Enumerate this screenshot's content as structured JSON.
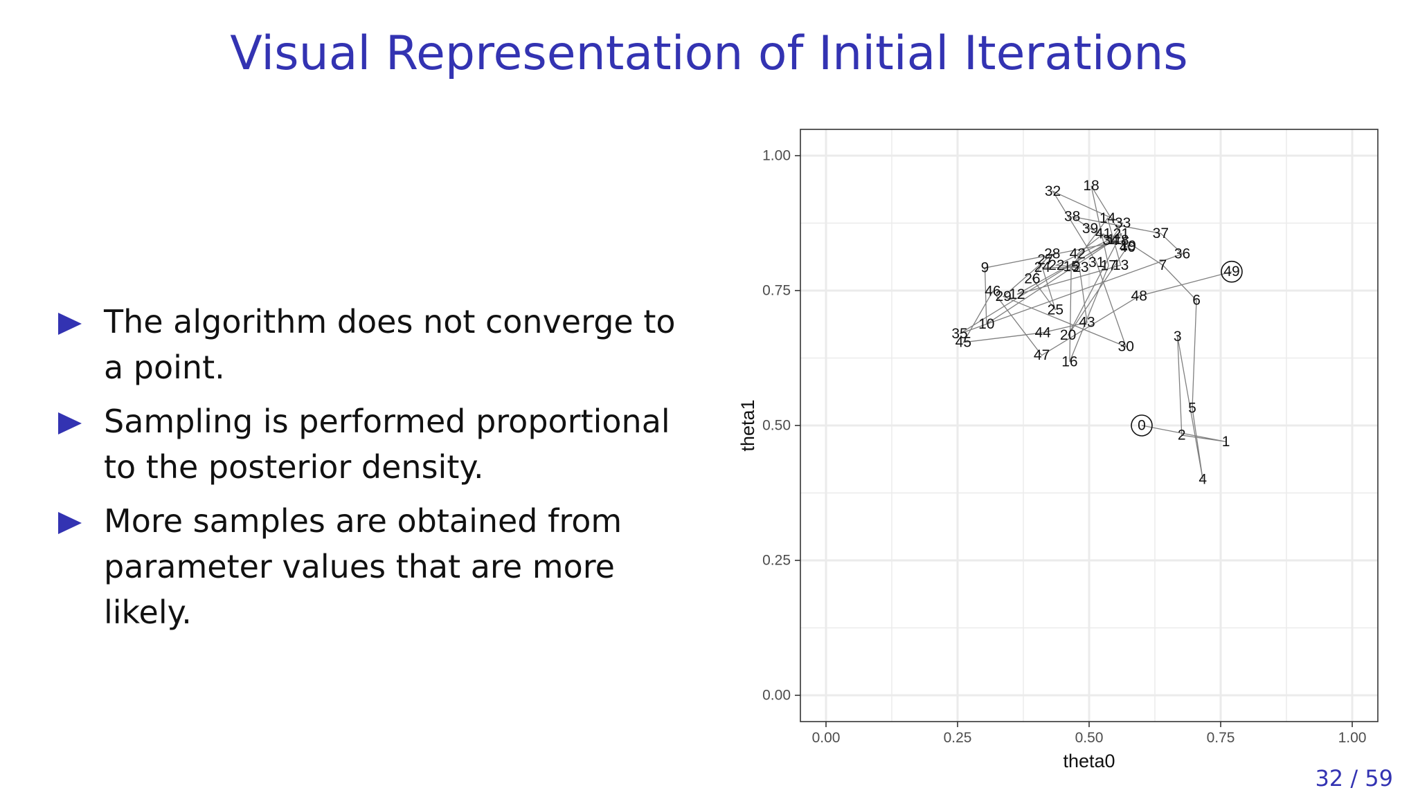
{
  "slide": {
    "title": "Visual Representation of Initial Iterations",
    "bullets": [
      "The algorithm does not converge to a point.",
      "Sampling is performed proportional to the posterior density.",
      "More samples are obtained from parameter values that are more likely."
    ],
    "page_number": "32 / 59"
  },
  "colors": {
    "accent": "#3333b2",
    "grid": "#ebebeb",
    "path": "#7f7f7f"
  },
  "chart_data": {
    "type": "line",
    "xlabel": "theta0",
    "ylabel": "theta1",
    "xlim": [
      0,
      1
    ],
    "ylim": [
      0,
      1
    ],
    "xticks": [
      "0.00",
      "0.25",
      "0.50",
      "0.75",
      "1.00"
    ],
    "yticks": [
      "0.00",
      "0.25",
      "0.50",
      "0.75",
      "1.00"
    ],
    "grid": true,
    "circled_points": [
      0,
      49
    ],
    "points": [
      {
        "label": "0",
        "x": 0.6,
        "y": 0.5
      },
      {
        "label": "1",
        "x": 0.76,
        "y": 0.47
      },
      {
        "label": "2",
        "x": 0.676,
        "y": 0.482
      },
      {
        "label": "3",
        "x": 0.668,
        "y": 0.665
      },
      {
        "label": "4",
        "x": 0.716,
        "y": 0.4
      },
      {
        "label": "5",
        "x": 0.696,
        "y": 0.532
      },
      {
        "label": "6",
        "x": 0.704,
        "y": 0.732
      },
      {
        "label": "7",
        "x": 0.64,
        "y": 0.797
      },
      {
        "label": "8",
        "x": 0.568,
        "y": 0.843
      },
      {
        "label": "9",
        "x": 0.302,
        "y": 0.792
      },
      {
        "label": "10",
        "x": 0.305,
        "y": 0.688
      },
      {
        "label": "11",
        "x": 0.548,
        "y": 0.844
      },
      {
        "label": "12",
        "x": 0.363,
        "y": 0.743
      },
      {
        "label": "13",
        "x": 0.56,
        "y": 0.797
      },
      {
        "label": "14",
        "x": 0.535,
        "y": 0.884
      },
      {
        "label": "15",
        "x": 0.466,
        "y": 0.794
      },
      {
        "label": "16",
        "x": 0.463,
        "y": 0.618
      },
      {
        "label": "17",
        "x": 0.537,
        "y": 0.796
      },
      {
        "label": "18",
        "x": 0.504,
        "y": 0.944
      },
      {
        "label": "19",
        "x": 0.574,
        "y": 0.833
      },
      {
        "label": "20",
        "x": 0.46,
        "y": 0.667
      },
      {
        "label": "21",
        "x": 0.561,
        "y": 0.855
      },
      {
        "label": "22",
        "x": 0.438,
        "y": 0.797
      },
      {
        "label": "23",
        "x": 0.484,
        "y": 0.793
      },
      {
        "label": "24",
        "x": 0.411,
        "y": 0.793
      },
      {
        "label": "25",
        "x": 0.436,
        "y": 0.714
      },
      {
        "label": "26",
        "x": 0.392,
        "y": 0.772
      },
      {
        "label": "27",
        "x": 0.417,
        "y": 0.807
      },
      {
        "label": "28",
        "x": 0.43,
        "y": 0.818
      },
      {
        "label": "29",
        "x": 0.337,
        "y": 0.739
      },
      {
        "label": "30",
        "x": 0.57,
        "y": 0.646
      },
      {
        "label": "31",
        "x": 0.514,
        "y": 0.802
      },
      {
        "label": "32",
        "x": 0.431,
        "y": 0.934
      },
      {
        "label": "33",
        "x": 0.564,
        "y": 0.875
      },
      {
        "label": "34",
        "x": 0.541,
        "y": 0.843
      },
      {
        "label": "35",
        "x": 0.254,
        "y": 0.67
      },
      {
        "label": "36",
        "x": 0.677,
        "y": 0.818
      },
      {
        "label": "37",
        "x": 0.636,
        "y": 0.856
      },
      {
        "label": "38",
        "x": 0.468,
        "y": 0.887
      },
      {
        "label": "39",
        "x": 0.502,
        "y": 0.865
      },
      {
        "label": "40",
        "x": 0.573,
        "y": 0.83
      },
      {
        "label": "41",
        "x": 0.527,
        "y": 0.855
      },
      {
        "label": "42",
        "x": 0.478,
        "y": 0.818
      },
      {
        "label": "43",
        "x": 0.496,
        "y": 0.691
      },
      {
        "label": "44",
        "x": 0.412,
        "y": 0.672
      },
      {
        "label": "45",
        "x": 0.261,
        "y": 0.654
      },
      {
        "label": "46",
        "x": 0.317,
        "y": 0.749
      },
      {
        "label": "47",
        "x": 0.41,
        "y": 0.63
      },
      {
        "label": "48",
        "x": 0.595,
        "y": 0.74
      },
      {
        "label": "49",
        "x": 0.771,
        "y": 0.785
      }
    ]
  }
}
